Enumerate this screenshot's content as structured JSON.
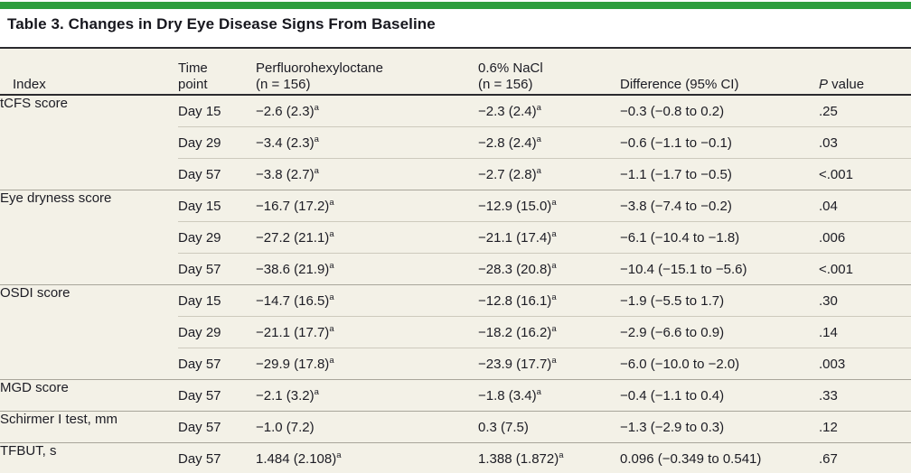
{
  "title": "Table 3. Changes in Dry Eye Disease Signs From Baseline",
  "colors": {
    "accent_green": "#2e9e3e",
    "table_background": "#f3f1e7",
    "dark_rule": "#2a2a2e",
    "group_rule": "#a8a59a",
    "sub_rule": "#cdcabd",
    "text": "#1c1c24"
  },
  "table": {
    "columns": [
      {
        "id": "index",
        "lines": [
          "Index"
        ]
      },
      {
        "id": "time-point",
        "lines": [
          "Time",
          "point"
        ]
      },
      {
        "id": "perfluorohexyloctane",
        "lines": [
          "Perfluorohexyloctane",
          "(n = 156)"
        ]
      },
      {
        "id": "nacl",
        "lines": [
          "0.6% NaCl",
          "(n = 156)"
        ]
      },
      {
        "id": "difference",
        "lines": [
          "Difference (95% CI)"
        ]
      },
      {
        "id": "p-value",
        "lines": [
          "P value"
        ],
        "italic_first_word": true
      }
    ],
    "footnote_marker": "a",
    "groups": [
      {
        "index": "tCFS score",
        "rows": [
          {
            "time": "Day 15",
            "pfho": "−2.6 (2.3)",
            "pfho_sup": "a",
            "nacl": "−2.3 (2.4)",
            "nacl_sup": "a",
            "diff": "−0.3 (−0.8 to 0.2)",
            "p": ".25"
          },
          {
            "time": "Day 29",
            "pfho": "−3.4 (2.3)",
            "pfho_sup": "a",
            "nacl": "−2.8 (2.4)",
            "nacl_sup": "a",
            "diff": "−0.6 (−1.1 to −0.1)",
            "p": ".03"
          },
          {
            "time": "Day 57",
            "pfho": "−3.8 (2.7)",
            "pfho_sup": "a",
            "nacl": "−2.7 (2.8)",
            "nacl_sup": "a",
            "diff": "−1.1 (−1.7 to −0.5)",
            "p": "<.001"
          }
        ]
      },
      {
        "index": "Eye dryness score",
        "rows": [
          {
            "time": "Day 15",
            "pfho": "−16.7 (17.2)",
            "pfho_sup": "a",
            "nacl": "−12.9 (15.0)",
            "nacl_sup": "a",
            "diff": "−3.8 (−7.4 to −0.2)",
            "p": ".04"
          },
          {
            "time": "Day 29",
            "pfho": "−27.2 (21.1)",
            "pfho_sup": "a",
            "nacl": "−21.1 (17.4)",
            "nacl_sup": "a",
            "diff": "−6.1 (−10.4 to −1.8)",
            "p": ".006"
          },
          {
            "time": "Day 57",
            "pfho": "−38.6 (21.9)",
            "pfho_sup": "a",
            "nacl": "−28.3 (20.8)",
            "nacl_sup": "a",
            "diff": "−10.4 (−15.1 to −5.6)",
            "p": "<.001"
          }
        ]
      },
      {
        "index": "OSDI score",
        "rows": [
          {
            "time": "Day 15",
            "pfho": "−14.7 (16.5)",
            "pfho_sup": "a",
            "nacl": "−12.8 (16.1)",
            "nacl_sup": "a",
            "diff": "−1.9 (−5.5 to 1.7)",
            "p": ".30"
          },
          {
            "time": "Day 29",
            "pfho": "−21.1 (17.7)",
            "pfho_sup": "a",
            "nacl": "−18.2 (16.2)",
            "nacl_sup": "a",
            "diff": "−2.9 (−6.6 to 0.9)",
            "p": ".14"
          },
          {
            "time": "Day 57",
            "pfho": "−29.9 (17.8)",
            "pfho_sup": "a",
            "nacl": "−23.9 (17.7)",
            "nacl_sup": "a",
            "diff": "−6.0 (−10.0 to −2.0)",
            "p": ".003"
          }
        ]
      },
      {
        "index": "MGD score",
        "rows": [
          {
            "time": "Day 57",
            "pfho": "−2.1 (3.2)",
            "pfho_sup": "a",
            "nacl": "−1.8 (3.4)",
            "nacl_sup": "a",
            "diff": "−0.4 (−1.1 to 0.4)",
            "p": ".33"
          }
        ]
      },
      {
        "index": "Schirmer I test, mm",
        "rows": [
          {
            "time": "Day 57",
            "pfho": "−1.0 (7.2)",
            "pfho_sup": "",
            "nacl": "0.3 (7.5)",
            "nacl_sup": "",
            "diff": "−1.3 (−2.9 to 0.3)",
            "p": ".12"
          }
        ]
      },
      {
        "index": "TFBUT, s",
        "rows": [
          {
            "time": "Day 57",
            "pfho": "1.484 (2.108)",
            "pfho_sup": "a",
            "nacl": "1.388 (1.872)",
            "nacl_sup": "a",
            "diff": "0.096 (−0.349 to 0.541)",
            "p": ".67"
          }
        ]
      }
    ]
  }
}
